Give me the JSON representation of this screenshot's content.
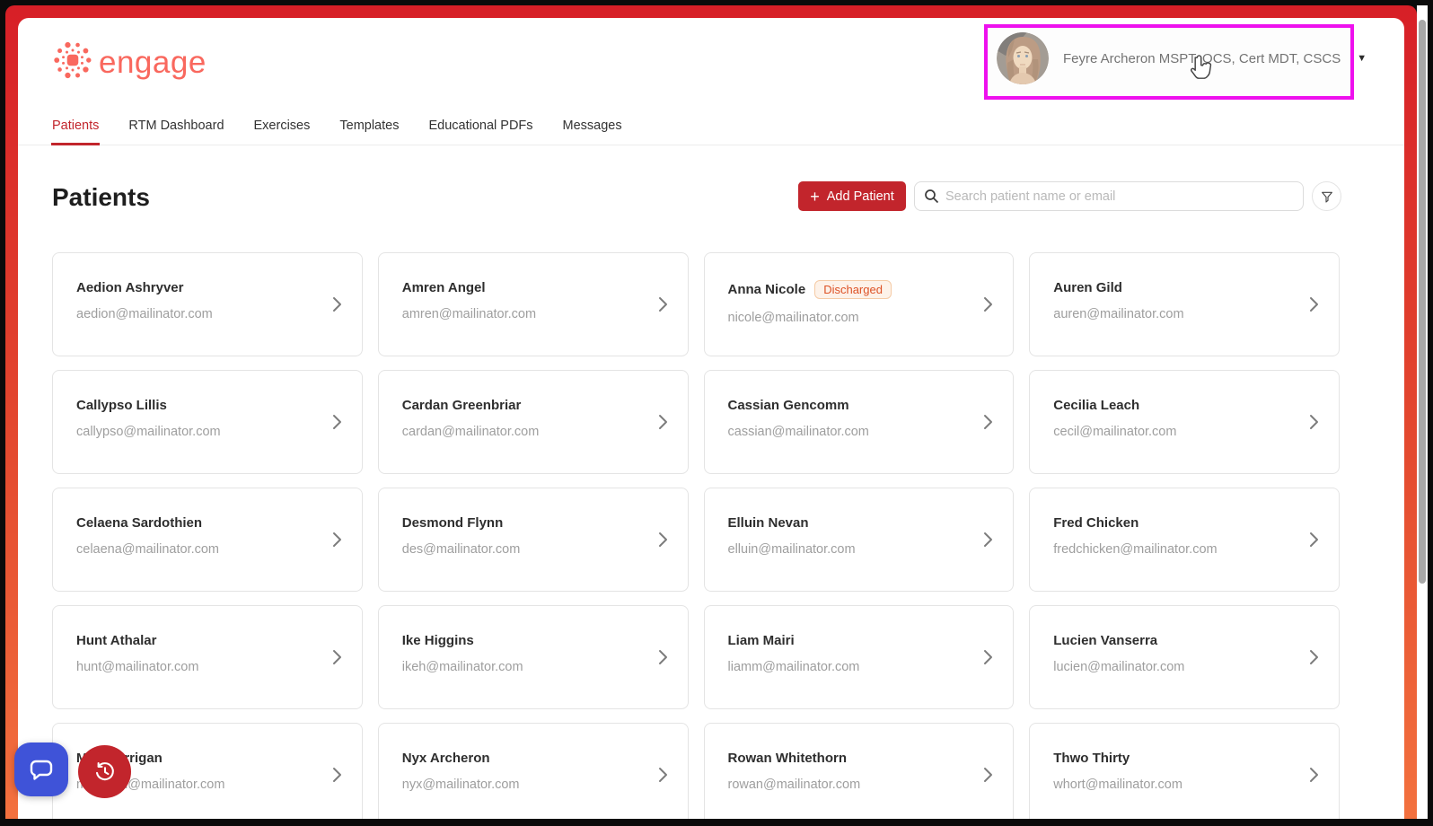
{
  "header": {
    "logo_text": "engage",
    "user_name": "Feyre Archeron MSPT, OCS, Cert MDT, CSCS"
  },
  "nav": {
    "tabs": [
      {
        "label": "Patients",
        "active": true
      },
      {
        "label": "RTM Dashboard",
        "active": false
      },
      {
        "label": "Exercises",
        "active": false
      },
      {
        "label": "Templates",
        "active": false
      },
      {
        "label": "Educational PDFs",
        "active": false
      },
      {
        "label": "Messages",
        "active": false
      }
    ]
  },
  "toolbar": {
    "page_title": "Patients",
    "add_patient_label": "Add Patient",
    "search_placeholder": "Search patient name or email"
  },
  "patients": [
    {
      "name": "Aedion Ashryver",
      "email": "aedion@mailinator.com"
    },
    {
      "name": "Amren Angel",
      "email": "amren@mailinator.com"
    },
    {
      "name": "Anna Nicole",
      "email": "nicole@mailinator.com",
      "status": "Discharged"
    },
    {
      "name": "Auren Gild",
      "email": "auren@mailinator.com"
    },
    {
      "name": "Callypso Lillis",
      "email": "callypso@mailinator.com"
    },
    {
      "name": "Cardan Greenbriar",
      "email": "cardan@mailinator.com"
    },
    {
      "name": "Cassian Gencomm",
      "email": "cassian@mailinator.com"
    },
    {
      "name": "Cecilia Leach",
      "email": "cecil@mailinator.com"
    },
    {
      "name": "Celaena Sardothien",
      "email": "celaena@mailinator.com"
    },
    {
      "name": "Desmond Flynn",
      "email": "des@mailinator.com"
    },
    {
      "name": "Elluin Nevan",
      "email": "elluin@mailinator.com"
    },
    {
      "name": "Fred Chicken",
      "email": "fredchicken@mailinator.com"
    },
    {
      "name": "Hunt Athalar",
      "email": "hunt@mailinator.com"
    },
    {
      "name": "Ike Higgins",
      "email": "ikeh@mailinator.com"
    },
    {
      "name": "Liam Mairi",
      "email": "liamm@mailinator.com"
    },
    {
      "name": "Lucien Vanserra",
      "email": "lucien@mailinator.com"
    },
    {
      "name": "Mor Morrigan",
      "email": "morrigan@mailinator.com"
    },
    {
      "name": "Nyx Archeron",
      "email": "nyx@mailinator.com"
    },
    {
      "name": "Rowan Whitethorn",
      "email": "rowan@mailinator.com"
    },
    {
      "name": "Thwo Thirty",
      "email": "whort@mailinator.com"
    }
  ],
  "icons": {
    "add_icon": "+",
    "caret_down": "▼",
    "search_icon": "magnifier",
    "filter_icon": "funnel",
    "chat_icon": "chat-bubble",
    "history_icon": "clock-history",
    "chevron_icon": "chevron-right"
  },
  "colors": {
    "brand_coral": "#F9685E",
    "primary_red": "#C2252C",
    "badge_text": "#DD5226",
    "badge_bg": "#FDF2E9",
    "badge_border": "#F5CBA6",
    "annotation_magenta": "#EE10EE",
    "chat_blue": "#3F53D8",
    "border_gradient_top": "#D71F27",
    "border_gradient_bottom": "#F3713E"
  }
}
